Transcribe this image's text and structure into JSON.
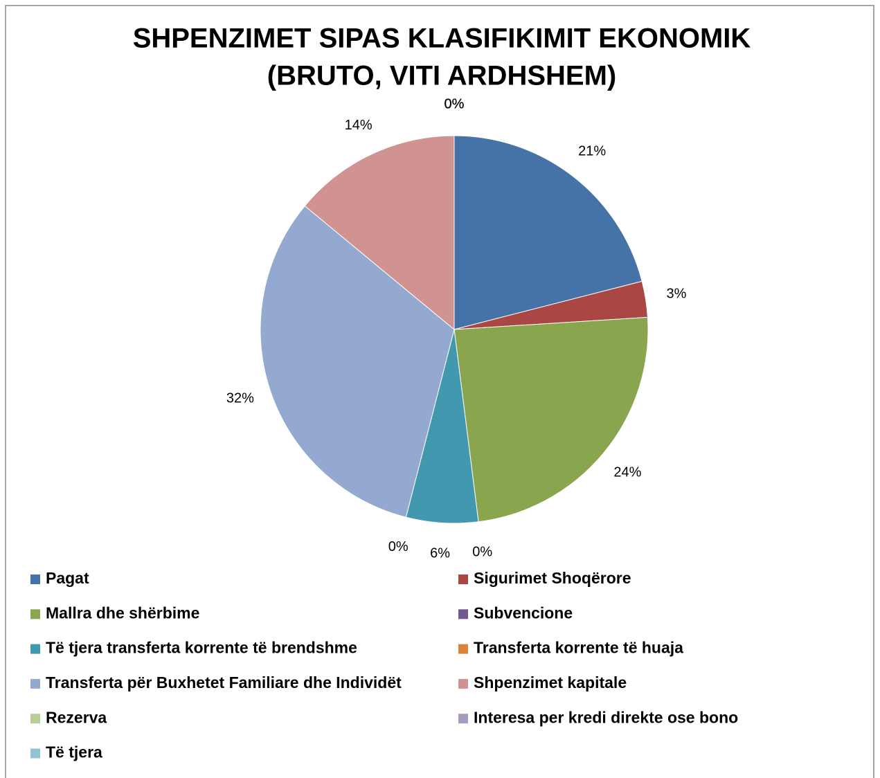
{
  "chart_data": {
    "type": "pie",
    "title": [
      "SHPENZIMET SIPAS KLASIFIKIMIT EKONOMIK",
      "(BRUTO, VITI ARDHSHEM)"
    ],
    "categories": [
      "Pagat",
      "Sigurimet Shoqërore",
      "Mallra dhe shërbime",
      "Subvencione",
      "Të tjera transferta korrente të brendshme",
      "Transferta korrente të huaja",
      "Transferta për Buxhetet Familiare dhe Individët",
      "Shpenzimet kapitale",
      "Rezerva",
      "Interesa per kredi direkte ose bono",
      "Të tjera"
    ],
    "values": [
      21,
      3,
      24,
      0,
      6,
      0,
      32,
      14,
      0,
      0,
      0
    ],
    "value_labels": [
      "21%",
      "3%",
      "24%",
      "0%",
      "6%",
      "0%",
      "32%",
      "14%",
      "0%",
      "0%",
      "0%"
    ],
    "colors": [
      "#4572a7",
      "#aa4643",
      "#89a54e",
      "#71588f",
      "#4198af",
      "#db843d",
      "#93a9cf",
      "#d19392",
      "#b9cd96",
      "#a99bbd",
      "#92c3d4"
    ],
    "legend": "bottom"
  }
}
